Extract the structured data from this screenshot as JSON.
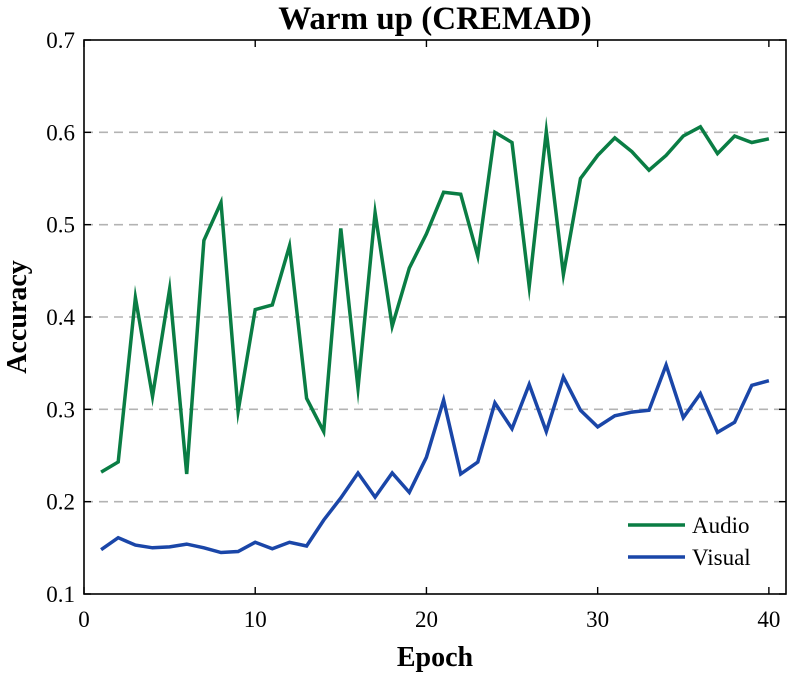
{
  "chart_data": {
    "type": "line",
    "title": "Warm up (CREMAD)",
    "xlabel": "Epoch",
    "ylabel": "Accuracy",
    "xlim": [
      0,
      41
    ],
    "ylim": [
      0.1,
      0.7
    ],
    "xticks": [
      0,
      10,
      20,
      30,
      40
    ],
    "yticks": [
      0.1,
      0.2,
      0.3,
      0.4,
      0.5,
      0.6,
      0.7
    ],
    "xtick_labels": [
      "0",
      "10",
      "20",
      "30",
      "40"
    ],
    "ytick_labels": [
      "0.1",
      "0.2",
      "0.3",
      "0.4",
      "0.5",
      "0.6",
      "0.7"
    ],
    "grid": "y-dashed",
    "legend": "bottom-right",
    "x": [
      1,
      2,
      3,
      4,
      5,
      6,
      7,
      8,
      9,
      10,
      11,
      12,
      13,
      14,
      15,
      16,
      17,
      18,
      19,
      20,
      21,
      22,
      23,
      24,
      25,
      26,
      27,
      28,
      29,
      30,
      31,
      32,
      33,
      34,
      35,
      36,
      37,
      38,
      39,
      40
    ],
    "series": [
      {
        "name": "Audio",
        "color": "#0a7d44",
        "values": [
          0.232,
          0.243,
          0.421,
          0.314,
          0.43,
          0.23,
          0.483,
          0.524,
          0.298,
          0.408,
          0.413,
          0.477,
          0.312,
          0.276,
          0.496,
          0.323,
          0.513,
          0.39,
          0.453,
          0.49,
          0.535,
          0.533,
          0.466,
          0.6,
          0.589,
          0.433,
          0.601,
          0.446,
          0.55,
          0.575,
          0.594,
          0.579,
          0.559,
          0.575,
          0.596,
          0.606,
          0.577,
          0.596,
          0.589,
          0.593
        ]
      },
      {
        "name": "Visual",
        "color": "#1a46a8",
        "values": [
          0.148,
          0.161,
          0.153,
          0.15,
          0.151,
          0.154,
          0.15,
          0.145,
          0.146,
          0.156,
          0.149,
          0.156,
          0.152,
          0.18,
          0.204,
          0.231,
          0.205,
          0.231,
          0.21,
          0.248,
          0.31,
          0.23,
          0.243,
          0.307,
          0.279,
          0.327,
          0.276,
          0.335,
          0.299,
          0.281,
          0.293,
          0.297,
          0.299,
          0.348,
          0.291,
          0.317,
          0.275,
          0.286,
          0.326,
          0.331
        ]
      }
    ]
  }
}
